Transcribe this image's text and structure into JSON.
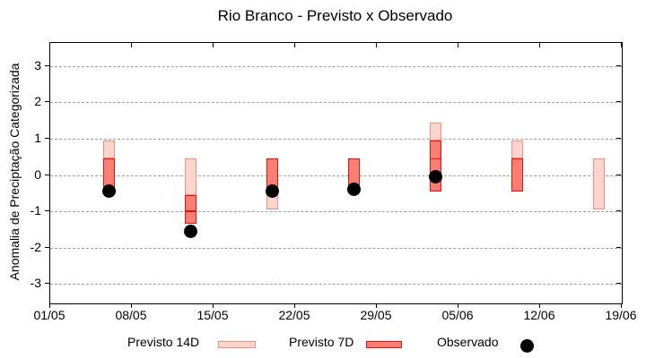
{
  "title": "Rio Branco - Previsto x Observado",
  "y_axis": {
    "label": "Anomalia de Preciptação Categorizada",
    "ticks": [
      3,
      2,
      1,
      0,
      -1,
      -2,
      -3
    ]
  },
  "x_axis": {
    "ticks": [
      "01/05",
      "08/05",
      "15/05",
      "22/05",
      "29/05",
      "05/06",
      "12/06",
      "19/06"
    ]
  },
  "legend": {
    "items": [
      {
        "label": "Previsto 14D",
        "swatch": "pink-box"
      },
      {
        "label": "Previsto 7D",
        "swatch": "red-box"
      },
      {
        "label": "Observado",
        "swatch": "black-dot"
      }
    ]
  },
  "colors": {
    "previsto14_fill": "#fbd5cd",
    "previsto14_border": "#f0927e",
    "previsto7_fill": "#fa7e72",
    "previsto7_border": "#e51310",
    "observed": "#000000",
    "grid": "#9e9e9e",
    "axis": "#000000"
  },
  "chart_data": {
    "type": "candlestick",
    "title": "Rio Branco - Previsto x Observado",
    "ylabel": "Anomalia de Preciptação Categorizada",
    "grid": true,
    "legend_position": "bottom",
    "ylim": [
      -3.54,
      3.64
    ],
    "y_ticks": [
      3,
      2,
      1,
      0,
      -1,
      -2,
      -3
    ],
    "xlim_days": [
      0,
      49
    ],
    "x_tick_days": [
      0,
      7,
      14,
      21,
      28,
      35,
      42,
      49
    ],
    "x_tick_labels": [
      "01/05",
      "08/05",
      "15/05",
      "22/05",
      "29/05",
      "05/06",
      "12/06",
      "19/06"
    ],
    "series_legend": [
      "Previsto 14D",
      "Previsto 7D",
      "Observado"
    ],
    "clusters": [
      {
        "date": "06/05",
        "day": 5,
        "segments": [
          {
            "series": "previsto_14d",
            "from": 0.95,
            "to": 0.45
          },
          {
            "series": "previsto_7d",
            "from": 0.45,
            "to": -0.4
          }
        ],
        "dividers": [],
        "observed": -0.45
      },
      {
        "date": "13/05",
        "day": 12,
        "segments": [
          {
            "series": "previsto_14d",
            "from": 0.45,
            "to": -0.55
          },
          {
            "series": "previsto_7d",
            "from": -0.55,
            "to": -1.35
          }
        ],
        "dividers": [
          -1.0
        ],
        "observed": -1.55
      },
      {
        "date": "20/05",
        "day": 19,
        "segments": [
          {
            "series": "previsto_7d",
            "from": 0.45,
            "to": -0.45
          },
          {
            "series": "previsto_14d",
            "from": -0.45,
            "to": -0.95
          }
        ],
        "dividers": [],
        "observed": -0.45
      },
      {
        "date": "27/05",
        "day": 26,
        "segments": [
          {
            "series": "previsto_7d",
            "from": 0.45,
            "to": -0.45
          }
        ],
        "dividers": [],
        "observed": -0.4
      },
      {
        "date": "03/06",
        "day": 33,
        "segments": [
          {
            "series": "previsto_14d",
            "from": 1.45,
            "to": 0.95
          },
          {
            "series": "previsto_7d",
            "from": 0.95,
            "to": -0.45
          }
        ],
        "dividers": [
          0.45
        ],
        "observed": -0.05
      },
      {
        "date": "10/06",
        "day": 40,
        "segments": [
          {
            "series": "previsto_14d",
            "from": 0.95,
            "to": 0.45
          },
          {
            "series": "previsto_7d",
            "from": 0.45,
            "to": -0.45
          }
        ],
        "dividers": [],
        "observed": null
      },
      {
        "date": "17/06",
        "day": 47,
        "segments": [
          {
            "series": "previsto_14d",
            "from": 0.45,
            "to": -0.95
          }
        ],
        "dividers": [],
        "observed": null
      }
    ]
  }
}
